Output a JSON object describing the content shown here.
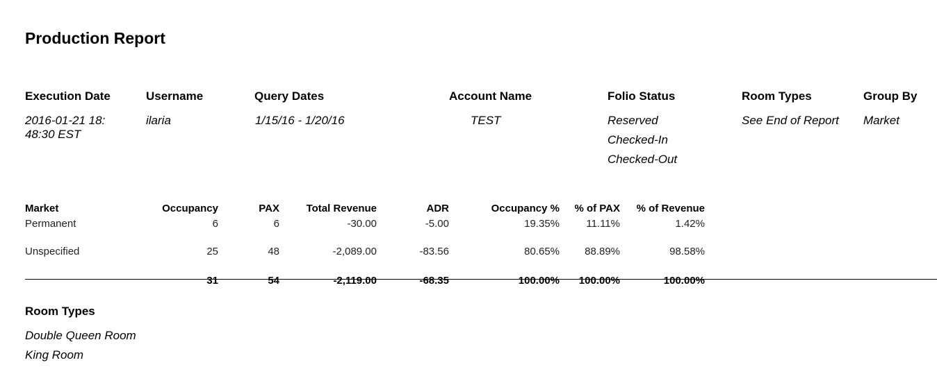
{
  "report": {
    "title": "Production Report"
  },
  "meta": {
    "labels": {
      "execution_date": "Execution Date",
      "username": "Username",
      "query_dates": "Query Dates",
      "account_name": "Account Name",
      "folio_status": "Folio Status",
      "room_types": "Room Types",
      "group_by": "Group By"
    },
    "values": {
      "execution_date_line1": "2016-01-21 18:",
      "execution_date_line2": "48:30 EST",
      "username": "ilaria",
      "query_dates": "1/15/16 - 1/20/16",
      "account_name": "TEST",
      "folio_status": [
        "Reserved",
        "Checked-In",
        "Checked-Out"
      ],
      "room_types": "See End of Report",
      "group_by": "Market"
    }
  },
  "table": {
    "columns": [
      "Market",
      "Occupancy",
      "PAX",
      "Total Revenue",
      "ADR",
      "Occupancy %",
      "% of PAX",
      "% of Revenue"
    ],
    "rows": [
      [
        "Permanent",
        "6",
        "6",
        "-30.00",
        "-5.00",
        "19.35%",
        "11.11%",
        "1.42%"
      ],
      [
        "Unspecified",
        "25",
        "48",
        "-2,089.00",
        "-83.56",
        "80.65%",
        "88.89%",
        "98.58%"
      ]
    ],
    "totals": [
      "",
      "31",
      "54",
      "-2,119.00",
      "-68.35",
      "100.00%",
      "100.00%",
      "100.00%"
    ]
  },
  "room_types_section": {
    "heading": "Room Types",
    "items": [
      "Double Queen Room",
      "King Room"
    ]
  }
}
